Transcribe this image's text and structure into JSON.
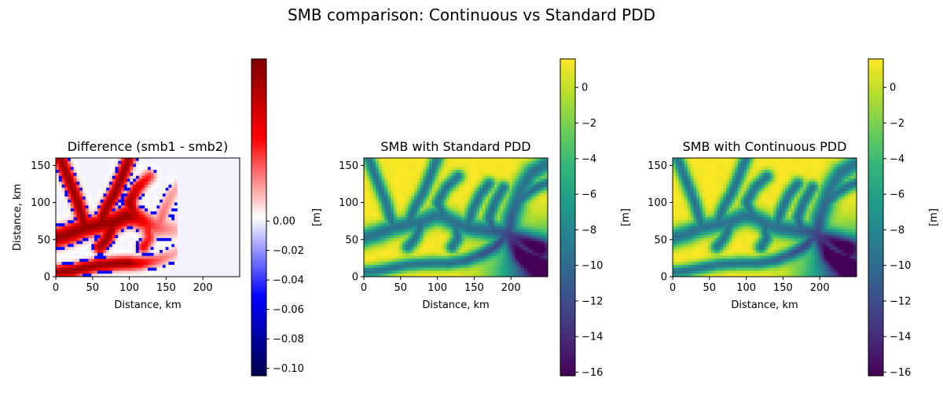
{
  "figure": {
    "suptitle": "SMB comparison: Continuous vs Standard PDD"
  },
  "chart_data": [
    {
      "type": "heatmap",
      "title": "Difference (smb1 - smb2)",
      "xlabel": "Distance, km",
      "ylabel": "Distance, km",
      "xlim": [
        0,
        250
      ],
      "ylim": [
        0,
        160
      ],
      "x_ticks": [
        0,
        50,
        100,
        150,
        200
      ],
      "y_ticks": [
        0,
        50,
        100,
        150
      ],
      "colormap": "seismic",
      "colorbar": {
        "label": "[m]",
        "range": [
          -0.105,
          0.11
        ],
        "ticks": [
          0.0,
          -0.02,
          -0.04,
          -0.06,
          -0.08,
          -0.1
        ],
        "tick_labels": [
          "0.00",
          "−0.02",
          "−0.04",
          "−0.06",
          "−0.08",
          "−0.10"
        ]
      },
      "description_values": {
        "max_positive_region": "valley networks",
        "background": 0.0
      }
    },
    {
      "type": "heatmap",
      "title": "SMB with Standard PDD",
      "xlabel": "Distance, km",
      "xlim": [
        0,
        250
      ],
      "ylim": [
        0,
        160
      ],
      "x_ticks": [
        0,
        50,
        100,
        150,
        200
      ],
      "y_ticks": [
        0,
        50,
        100,
        150
      ],
      "colormap": "viridis",
      "colorbar": {
        "label": "[m]",
        "range": [
          -16.2,
          1.6
        ],
        "ticks": [
          0,
          -2,
          -4,
          -6,
          -8,
          -10,
          -12,
          -14,
          -16
        ],
        "tick_labels": [
          "0",
          "−2",
          "−4",
          "−6",
          "−8",
          "−10",
          "−12",
          "−14",
          "−16"
        ]
      }
    },
    {
      "type": "heatmap",
      "title": "SMB with Continuous PDD",
      "xlabel": "Distance, km",
      "xlim": [
        0,
        250
      ],
      "ylim": [
        0,
        160
      ],
      "x_ticks": [
        0,
        50,
        100,
        150,
        200
      ],
      "y_ticks": [
        0,
        50,
        100,
        150
      ],
      "colormap": "viridis",
      "colorbar": {
        "label": "[m]",
        "range": [
          -16.2,
          1.6
        ],
        "ticks": [
          0,
          -2,
          -4,
          -6,
          -8,
          -10,
          -12,
          -14,
          -16
        ],
        "tick_labels": [
          "0",
          "−2",
          "−4",
          "−6",
          "−8",
          "−10",
          "−12",
          "−14",
          "−16"
        ]
      }
    }
  ],
  "colors": {
    "seismic": [
      "#00004c",
      "#0000ff",
      "#ffffff",
      "#ff0000",
      "#7f0000"
    ],
    "viridis": [
      "#440154",
      "#482878",
      "#3e4989",
      "#31688e",
      "#26828e",
      "#1f9e89",
      "#35b779",
      "#6ece58",
      "#b5de2b",
      "#fde725"
    ]
  }
}
